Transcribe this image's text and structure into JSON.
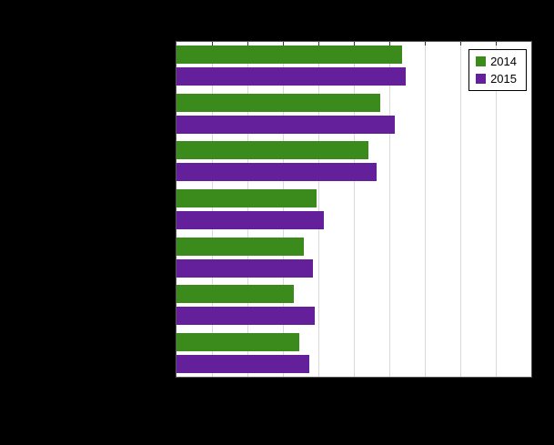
{
  "chart_data": {
    "type": "bar",
    "orientation": "horizontal",
    "title": "",
    "xlabel": "",
    "ylabel": "",
    "categories": [
      "",
      "",
      "",
      "",
      "",
      "",
      ""
    ],
    "series": [
      {
        "name": "2014",
        "color": "#3a8a1c",
        "values": [
          63.5,
          57.5,
          54.0,
          39.5,
          36.0,
          33.0,
          34.5
        ]
      },
      {
        "name": "2015",
        "color": "#64209b",
        "values": [
          64.5,
          61.5,
          56.5,
          41.5,
          38.5,
          39.0,
          37.5
        ]
      }
    ],
    "xlim": [
      0,
      100
    ],
    "gridline_step": 10,
    "grid": true,
    "legend_position": "top-right",
    "plot_background": "#ffffff",
    "page_background": "#000000",
    "gridline_color": "#d9d9d9"
  },
  "legend": {
    "items": [
      {
        "label": "2014"
      },
      {
        "label": "2015"
      }
    ]
  }
}
